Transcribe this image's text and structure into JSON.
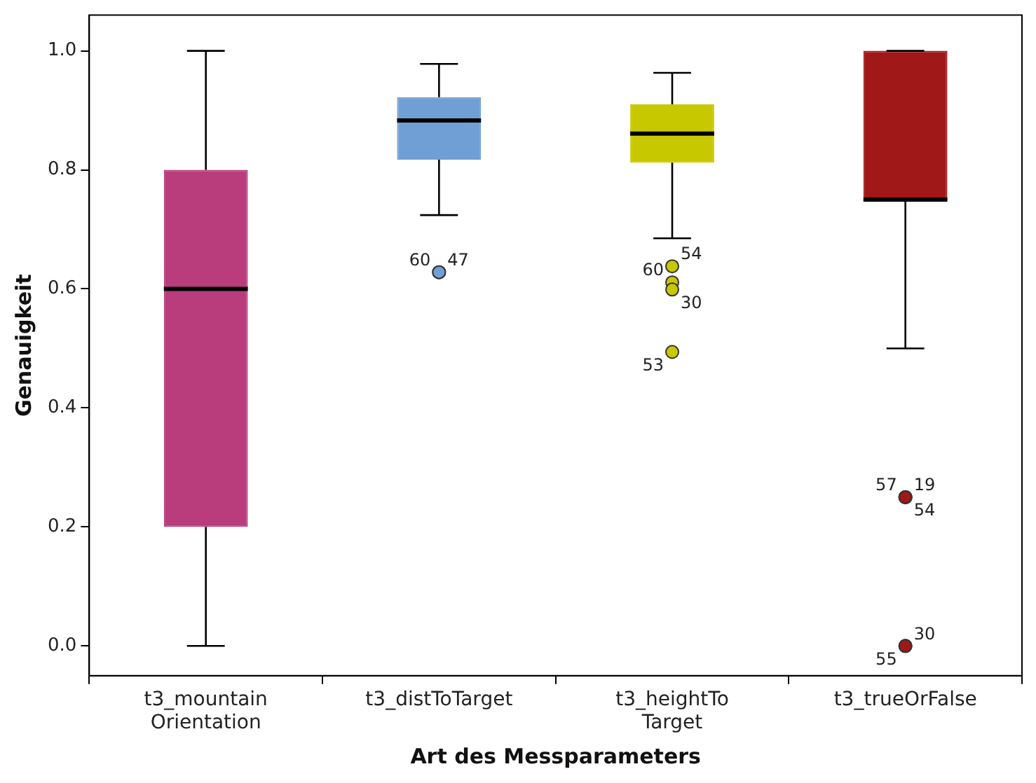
{
  "chart_data": {
    "type": "box",
    "xlabel": "Art des Messparameters",
    "ylabel": "Genauigkeit",
    "categories": [
      "t3_mountain Orientation",
      "t3_distToTarget",
      "t3_heightTo Target",
      "t3_trueOrFalse"
    ],
    "colors": [
      "#b93c7c",
      "#6f9fd4",
      "#c8c800",
      "#a01818"
    ],
    "boxes": [
      {
        "low": 0,
        "q1": 0.2,
        "median": 0.6,
        "q3": 0.8,
        "high": 1.0
      },
      {
        "low": 0.724,
        "q1": 0.817,
        "median": 0.883,
        "q3": 0.922,
        "high": 0.978,
        "outliers": [
          0.628,
          0.628
        ]
      },
      {
        "low": 0.685,
        "q1": 0.812,
        "median": 0.861,
        "q3": 0.91,
        "high": 0.963,
        "outliers": [
          0.638,
          0.611,
          0.599,
          0.494
        ]
      },
      {
        "low": 0.5,
        "q1": 0.75,
        "median": 0.75,
        "q3": 1.0,
        "high": 1.0,
        "outliers": [
          0.25,
          0.25,
          0.25,
          0,
          0
        ]
      }
    ],
    "ylim": [
      -0.05,
      1.06
    ],
    "yticks": [
      {
        "value": 0,
        "label": "0.0"
      },
      {
        "value": 0.2,
        "label": "0.2"
      },
      {
        "value": 0.4,
        "label": "0.4"
      },
      {
        "value": 0.6,
        "label": "0.6"
      },
      {
        "value": 0.8,
        "label": "0.8"
      },
      {
        "value": 1,
        "label": "1.0"
      }
    ],
    "legend": false,
    "annotations": [
      "47",
      "60",
      "54",
      "60",
      "30",
      "53",
      "19",
      "57",
      "54",
      "55",
      "30"
    ]
  }
}
